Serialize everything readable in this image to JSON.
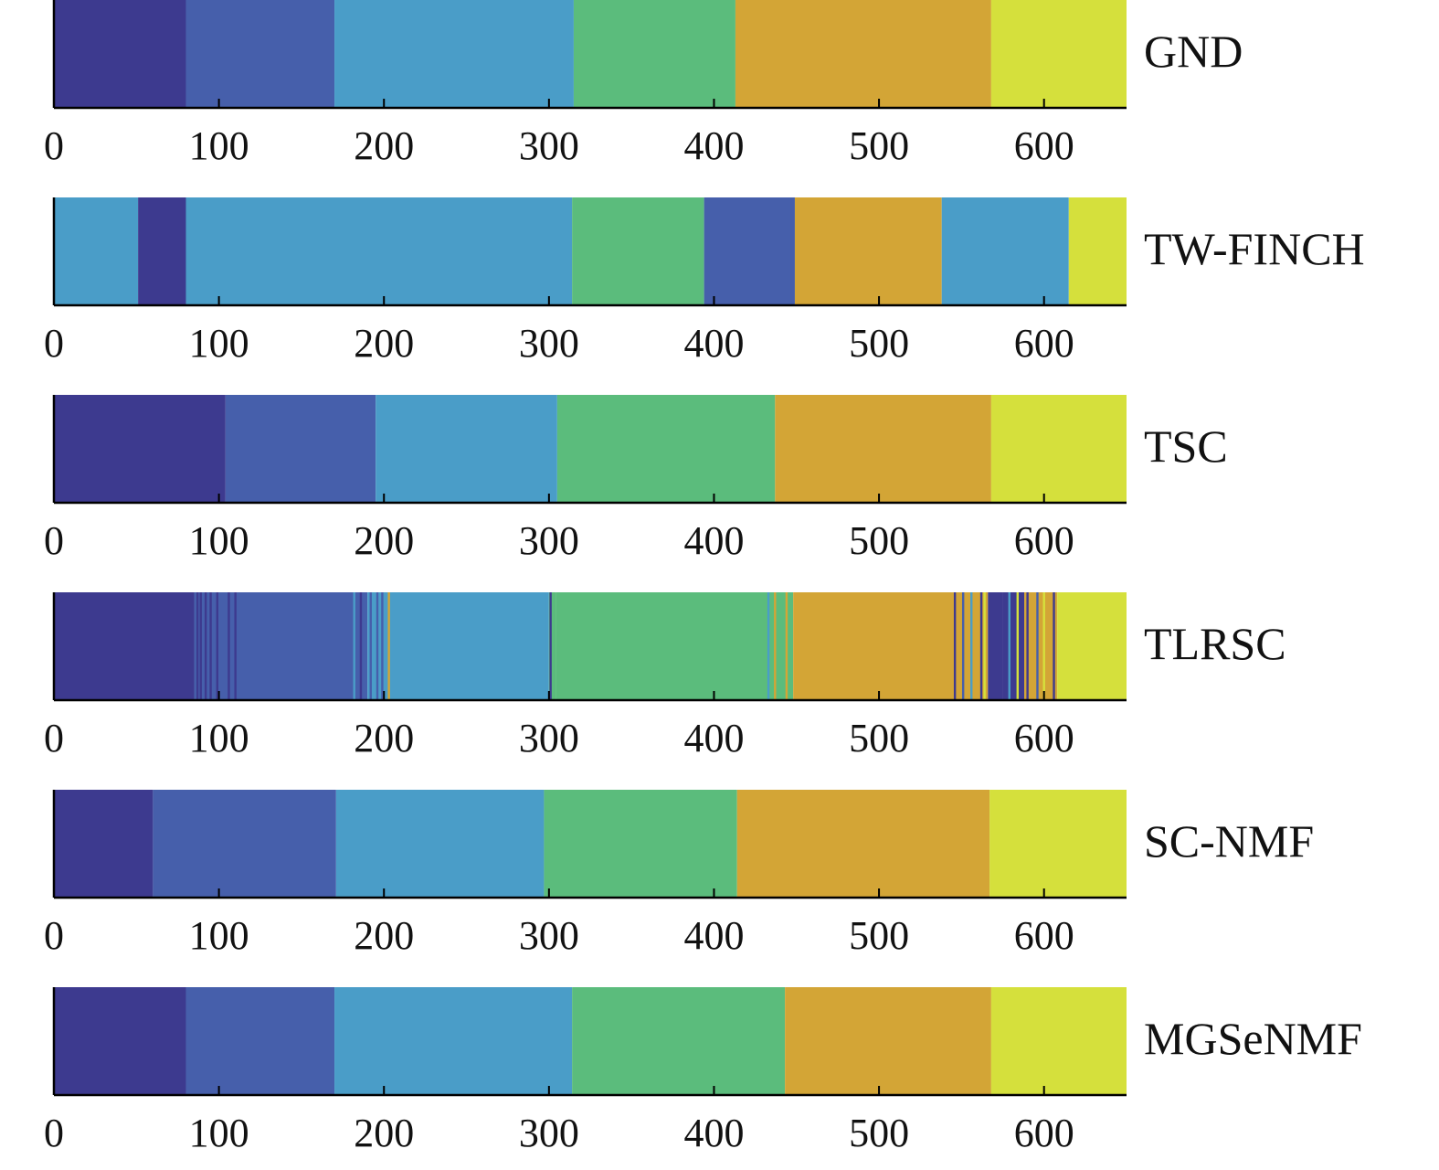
{
  "chart_data": {
    "type": "segmentation-bars",
    "xlim": [
      0,
      650
    ],
    "x_ticks": [
      0,
      100,
      200,
      300,
      400,
      500,
      600
    ],
    "x_tick_labels": [
      "0",
      "100",
      "200",
      "300",
      "400",
      "500",
      "600"
    ],
    "grid": false,
    "palette": {
      "c1": "#3d3a8f",
      "c2": "#465fab",
      "c3": "#4a9dc8",
      "c4": "#5bbc7c",
      "c5": "#d3a536",
      "c6": "#d5e03c"
    },
    "rows": [
      {
        "name": "GND",
        "segments": [
          {
            "start": 0,
            "end": 80,
            "cluster": "c1"
          },
          {
            "start": 80,
            "end": 170,
            "cluster": "c2"
          },
          {
            "start": 170,
            "end": 315,
            "cluster": "c3"
          },
          {
            "start": 315,
            "end": 413,
            "cluster": "c4"
          },
          {
            "start": 413,
            "end": 568,
            "cluster": "c5"
          },
          {
            "start": 568,
            "end": 650,
            "cluster": "c6"
          }
        ]
      },
      {
        "name": "TW-FINCH",
        "segments": [
          {
            "start": 0,
            "end": 51,
            "cluster": "c3"
          },
          {
            "start": 51,
            "end": 80,
            "cluster": "c1"
          },
          {
            "start": 80,
            "end": 314,
            "cluster": "c3"
          },
          {
            "start": 314,
            "end": 394,
            "cluster": "c4"
          },
          {
            "start": 394,
            "end": 449,
            "cluster": "c2"
          },
          {
            "start": 449,
            "end": 538,
            "cluster": "c5"
          },
          {
            "start": 538,
            "end": 615,
            "cluster": "c3"
          },
          {
            "start": 615,
            "end": 650,
            "cluster": "c6"
          }
        ]
      },
      {
        "name": "TSC",
        "segments": [
          {
            "start": 0,
            "end": 104,
            "cluster": "c1"
          },
          {
            "start": 104,
            "end": 195,
            "cluster": "c2"
          },
          {
            "start": 195,
            "end": 305,
            "cluster": "c3"
          },
          {
            "start": 305,
            "end": 437,
            "cluster": "c4"
          },
          {
            "start": 437,
            "end": 568,
            "cluster": "c5"
          },
          {
            "start": 568,
            "end": 650,
            "cluster": "c6"
          }
        ]
      },
      {
        "name": "TLRSC",
        "segments": [
          {
            "start": 0,
            "end": 85,
            "cluster": "c1"
          },
          {
            "start": 85,
            "end": 190,
            "cluster": "c2"
          },
          {
            "start": 190,
            "end": 300,
            "cluster": "c3"
          },
          {
            "start": 300,
            "end": 304,
            "cluster": "c4"
          },
          {
            "start": 304,
            "end": 448,
            "cluster": "c4"
          },
          {
            "start": 448,
            "end": 566,
            "cluster": "c5"
          },
          {
            "start": 566,
            "end": 575,
            "cluster": "c1"
          },
          {
            "start": 575,
            "end": 588,
            "cluster": "c1"
          },
          {
            "start": 588,
            "end": 608,
            "cluster": "c5"
          },
          {
            "start": 608,
            "end": 650,
            "cluster": "c6"
          }
        ],
        "stripes": [
          {
            "x": 87,
            "cluster": "c1"
          },
          {
            "x": 89,
            "cluster": "c1"
          },
          {
            "x": 92,
            "cluster": "c1"
          },
          {
            "x": 95,
            "cluster": "c1"
          },
          {
            "x": 99,
            "cluster": "c1"
          },
          {
            "x": 106,
            "cluster": "c1"
          },
          {
            "x": 110,
            "cluster": "c1"
          },
          {
            "x": 182,
            "cluster": "c3"
          },
          {
            "x": 186,
            "cluster": "c1"
          },
          {
            "x": 192,
            "cluster": "c2"
          },
          {
            "x": 196,
            "cluster": "c2"
          },
          {
            "x": 199,
            "cluster": "c2"
          },
          {
            "x": 203,
            "cluster": "c5"
          },
          {
            "x": 299,
            "cluster": "c3"
          },
          {
            "x": 301,
            "cluster": "c1"
          },
          {
            "x": 433,
            "cluster": "c3"
          },
          {
            "x": 437,
            "cluster": "c5"
          },
          {
            "x": 442,
            "cluster": "c4"
          },
          {
            "x": 444,
            "cluster": "c5"
          },
          {
            "x": 546,
            "cluster": "c1"
          },
          {
            "x": 551,
            "cluster": "c2"
          },
          {
            "x": 556,
            "cluster": "c3"
          },
          {
            "x": 562,
            "cluster": "c1"
          },
          {
            "x": 564,
            "cluster": "c6"
          },
          {
            "x": 579,
            "cluster": "c3"
          },
          {
            "x": 584,
            "cluster": "c6"
          },
          {
            "x": 590,
            "cluster": "c1"
          },
          {
            "x": 596,
            "cluster": "c2"
          },
          {
            "x": 600,
            "cluster": "c6"
          },
          {
            "x": 606,
            "cluster": "c1"
          }
        ]
      },
      {
        "name": "SC-NMF",
        "segments": [
          {
            "start": 0,
            "end": 60,
            "cluster": "c1"
          },
          {
            "start": 60,
            "end": 171,
            "cluster": "c2"
          },
          {
            "start": 171,
            "end": 297,
            "cluster": "c3"
          },
          {
            "start": 297,
            "end": 414,
            "cluster": "c4"
          },
          {
            "start": 414,
            "end": 567,
            "cluster": "c5"
          },
          {
            "start": 567,
            "end": 650,
            "cluster": "c6"
          }
        ]
      },
      {
        "name": "MGSeNMF",
        "segments": [
          {
            "start": 0,
            "end": 80,
            "cluster": "c1"
          },
          {
            "start": 80,
            "end": 170,
            "cluster": "c2"
          },
          {
            "start": 170,
            "end": 314,
            "cluster": "c3"
          },
          {
            "start": 314,
            "end": 443,
            "cluster": "c4"
          },
          {
            "start": 443,
            "end": 568,
            "cluster": "c5"
          },
          {
            "start": 568,
            "end": 650,
            "cluster": "c6"
          }
        ]
      }
    ]
  }
}
